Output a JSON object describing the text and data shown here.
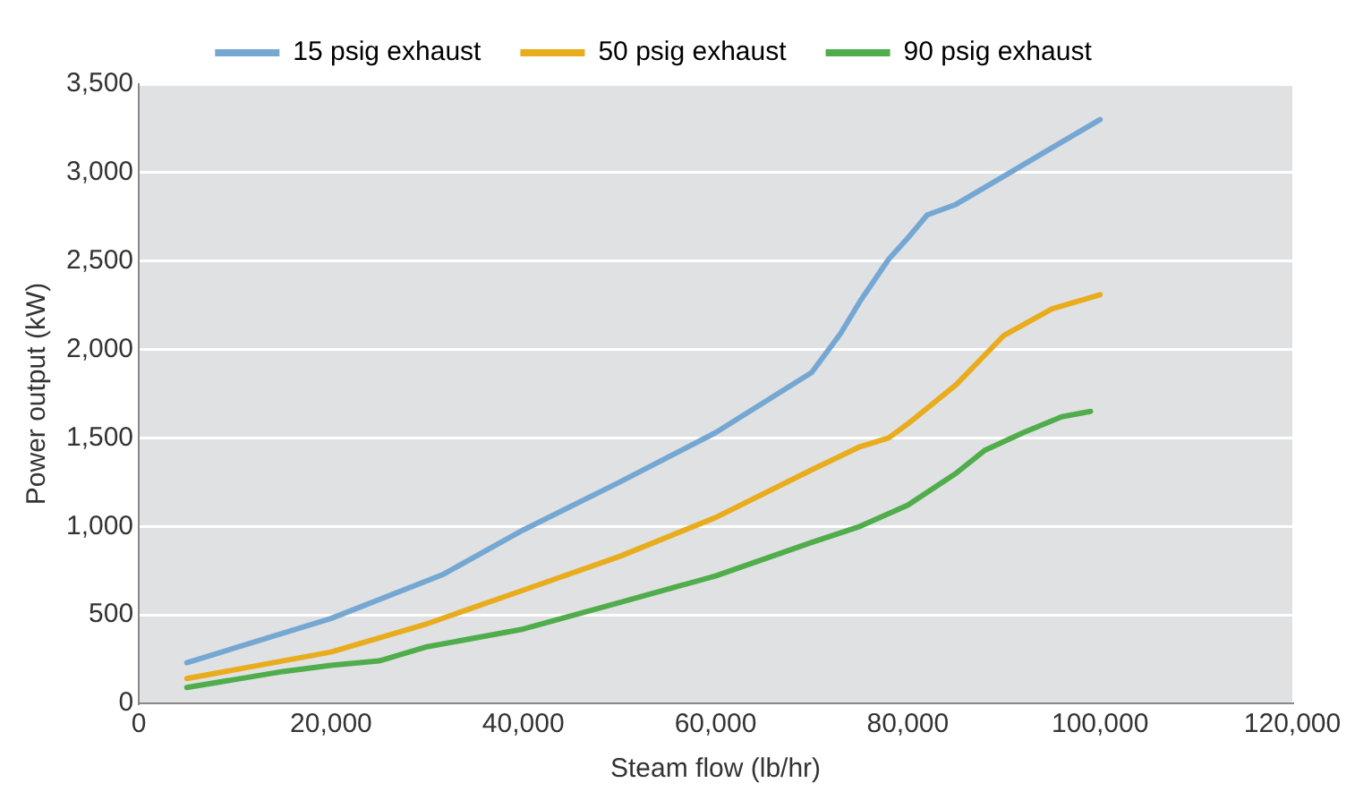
{
  "chart_data": {
    "type": "line",
    "xlabel": "Steam flow (lb/hr)",
    "ylabel": "Power output (kW)",
    "xlim": [
      0,
      120000
    ],
    "xticks": [
      0,
      {
        "value": 20000,
        "label": "20,000"
      },
      {
        "value": 40000,
        "label": "40,000"
      },
      {
        "value": 60000,
        "label": "60,000"
      },
      {
        "value": 80000,
        "label": "80,000"
      },
      {
        "value": 100000,
        "label": "100,000"
      },
      {
        "value": 120000,
        "label": "120,000"
      }
    ],
    "ylim": [
      0,
      3500
    ],
    "yticks": [
      0,
      500,
      {
        "value": 1000,
        "label": "1,000"
      },
      {
        "value": 1500,
        "label": "1,500"
      },
      {
        "value": 2000,
        "label": "2,000"
      },
      {
        "value": 2500,
        "label": "2,500"
      },
      {
        "value": 3000,
        "label": "3,000"
      },
      {
        "value": 3500,
        "label": "3,500"
      }
    ],
    "grid": "y",
    "legend": "top",
    "marker": "none",
    "line_style": "solid",
    "series": [
      {
        "name": "15 psig exhaust",
        "color": "#75a7d3",
        "x": [
          5000,
          20000,
          31700,
          40000,
          50000,
          60000,
          70000,
          73000,
          75000,
          78000,
          80000,
          82000,
          85000,
          90000,
          95000,
          100000
        ],
        "values": [
          230,
          480,
          730,
          980,
          1250,
          1530,
          1870,
          2090,
          2270,
          2510,
          2630,
          2760,
          2820,
          2980,
          3140,
          3300
        ]
      },
      {
        "name": "50 psig exhaust",
        "color": "#e8ac1c",
        "x": [
          5000,
          20000,
          30000,
          40000,
          50000,
          60000,
          70000,
          75000,
          78000,
          80000,
          85000,
          90000,
          95000,
          100000
        ],
        "values": [
          140,
          290,
          450,
          640,
          830,
          1050,
          1320,
          1450,
          1500,
          1580,
          1800,
          2080,
          2230,
          2310
        ]
      },
      {
        "name": "90 psig exhaust",
        "color": "#4fad4b",
        "x": [
          5000,
          15000,
          20000,
          25000,
          30000,
          40000,
          50000,
          60000,
          70000,
          75000,
          80000,
          85000,
          88000,
          92000,
          96000,
          99000
        ],
        "values": [
          90,
          180,
          215,
          240,
          320,
          420,
          570,
          720,
          910,
          1000,
          1120,
          1300,
          1430,
          1530,
          1620,
          1650
        ]
      }
    ]
  }
}
